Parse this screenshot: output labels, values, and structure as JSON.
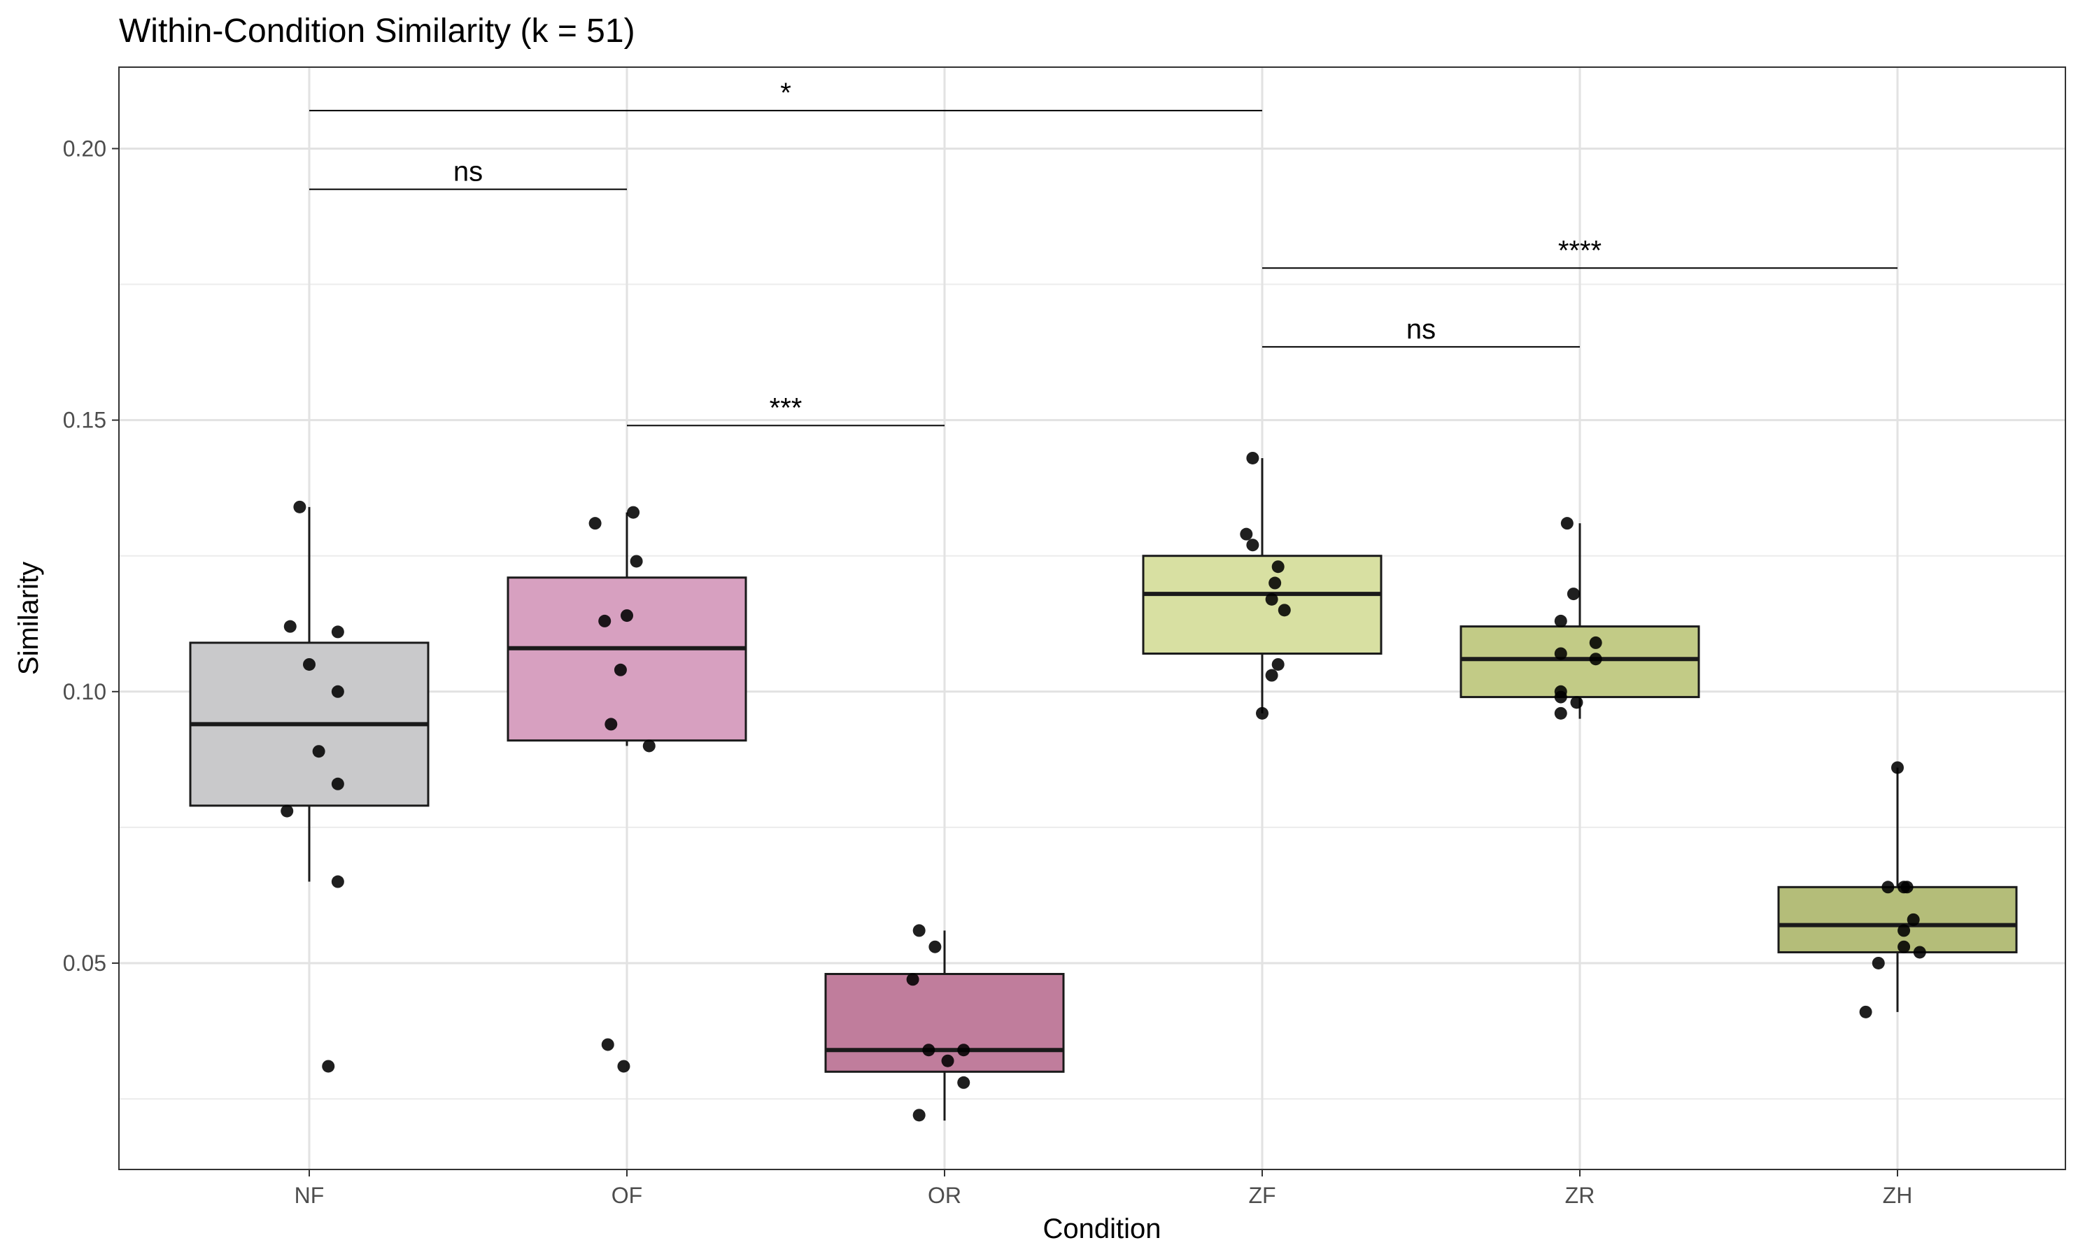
{
  "chart_data": {
    "type": "box",
    "title": "Within-Condition Similarity (k = 51)",
    "xlabel": "Condition",
    "ylabel": "Similarity",
    "ylim": [
      0.012,
      0.215
    ],
    "yticks": [
      0.05,
      0.1,
      0.15,
      0.2
    ],
    "ytick_labels": [
      "0.05",
      "0.10",
      "0.15",
      "0.20"
    ],
    "grid": true,
    "categories": [
      "NF",
      "OF",
      "OR",
      "ZF",
      "ZR",
      "ZH"
    ],
    "boxes": [
      {
        "category": "NF",
        "whisker_low": 0.065,
        "q1": 0.079,
        "median": 0.094,
        "q3": 0.109,
        "whisker_high": 0.134,
        "fill": "#c9c9cb"
      },
      {
        "category": "OF",
        "whisker_low": 0.09,
        "q1": 0.091,
        "median": 0.108,
        "q3": 0.121,
        "whisker_high": 0.133,
        "fill": "#d7a0c0"
      },
      {
        "category": "OR",
        "whisker_low": 0.021,
        "q1": 0.03,
        "median": 0.034,
        "q3": 0.048,
        "whisker_high": 0.056,
        "fill": "#c07d9c"
      },
      {
        "category": "ZF",
        "whisker_low": 0.096,
        "q1": 0.107,
        "median": 0.118,
        "q3": 0.125,
        "whisker_high": 0.143,
        "fill": "#d8e0a2"
      },
      {
        "category": "ZR",
        "whisker_low": 0.095,
        "q1": 0.099,
        "median": 0.106,
        "q3": 0.112,
        "whisker_high": 0.131,
        "fill": "#c2cb86"
      },
      {
        "category": "ZH",
        "whisker_low": 0.041,
        "q1": 0.052,
        "median": 0.057,
        "q3": 0.064,
        "whisker_high": 0.086,
        "fill": "#b4bd79"
      }
    ],
    "points": [
      {
        "category": "NF",
        "values": [
          0.134,
          0.112,
          0.111,
          0.105,
          0.1,
          0.089,
          0.083,
          0.078,
          0.065,
          0.031
        ],
        "jitter": [
          -0.03,
          -0.06,
          0.09,
          0.0,
          0.09,
          0.03,
          0.09,
          -0.07,
          0.09,
          0.06
        ]
      },
      {
        "category": "OF",
        "values": [
          0.133,
          0.131,
          0.124,
          0.114,
          0.113,
          0.104,
          0.094,
          0.09,
          0.035,
          0.031
        ],
        "jitter": [
          0.02,
          -0.1,
          0.03,
          0.0,
          -0.07,
          -0.02,
          -0.05,
          0.07,
          -0.06,
          -0.01
        ]
      },
      {
        "category": "OR",
        "values": [
          0.056,
          0.053,
          0.047,
          0.034,
          0.034,
          0.032,
          0.028,
          0.022
        ],
        "jitter": [
          -0.08,
          -0.03,
          -0.1,
          -0.05,
          0.06,
          0.01,
          0.06,
          -0.08
        ]
      },
      {
        "category": "ZF",
        "values": [
          0.143,
          0.129,
          0.127,
          0.123,
          0.12,
          0.117,
          0.115,
          0.105,
          0.103,
          0.096
        ],
        "jitter": [
          -0.03,
          -0.05,
          -0.03,
          0.05,
          0.04,
          0.03,
          0.07,
          0.05,
          0.03,
          0.0
        ]
      },
      {
        "category": "ZR",
        "values": [
          0.131,
          0.118,
          0.113,
          0.109,
          0.107,
          0.106,
          0.1,
          0.099,
          0.098,
          0.096
        ],
        "jitter": [
          -0.04,
          -0.02,
          -0.06,
          0.05,
          -0.06,
          0.05,
          -0.06,
          -0.06,
          -0.01,
          -0.06
        ]
      },
      {
        "category": "ZH",
        "values": [
          0.086,
          0.064,
          0.064,
          0.064,
          0.058,
          0.056,
          0.053,
          0.052,
          0.05,
          0.041
        ],
        "jitter": [
          0.0,
          -0.03,
          0.02,
          0.03,
          0.05,
          0.02,
          0.02,
          0.07,
          -0.06,
          -0.1
        ]
      }
    ],
    "significance": [
      {
        "from": "NF",
        "to": "ZF",
        "y": 0.207,
        "label": "*"
      },
      {
        "from": "NF",
        "to": "OF",
        "y": 0.1925,
        "label": "ns"
      },
      {
        "from": "ZF",
        "to": "ZH",
        "y": 0.178,
        "label": "****"
      },
      {
        "from": "ZF",
        "to": "ZR",
        "y": 0.1635,
        "label": "ns"
      },
      {
        "from": "OF",
        "to": "OR",
        "y": 0.149,
        "label": "***"
      }
    ]
  }
}
